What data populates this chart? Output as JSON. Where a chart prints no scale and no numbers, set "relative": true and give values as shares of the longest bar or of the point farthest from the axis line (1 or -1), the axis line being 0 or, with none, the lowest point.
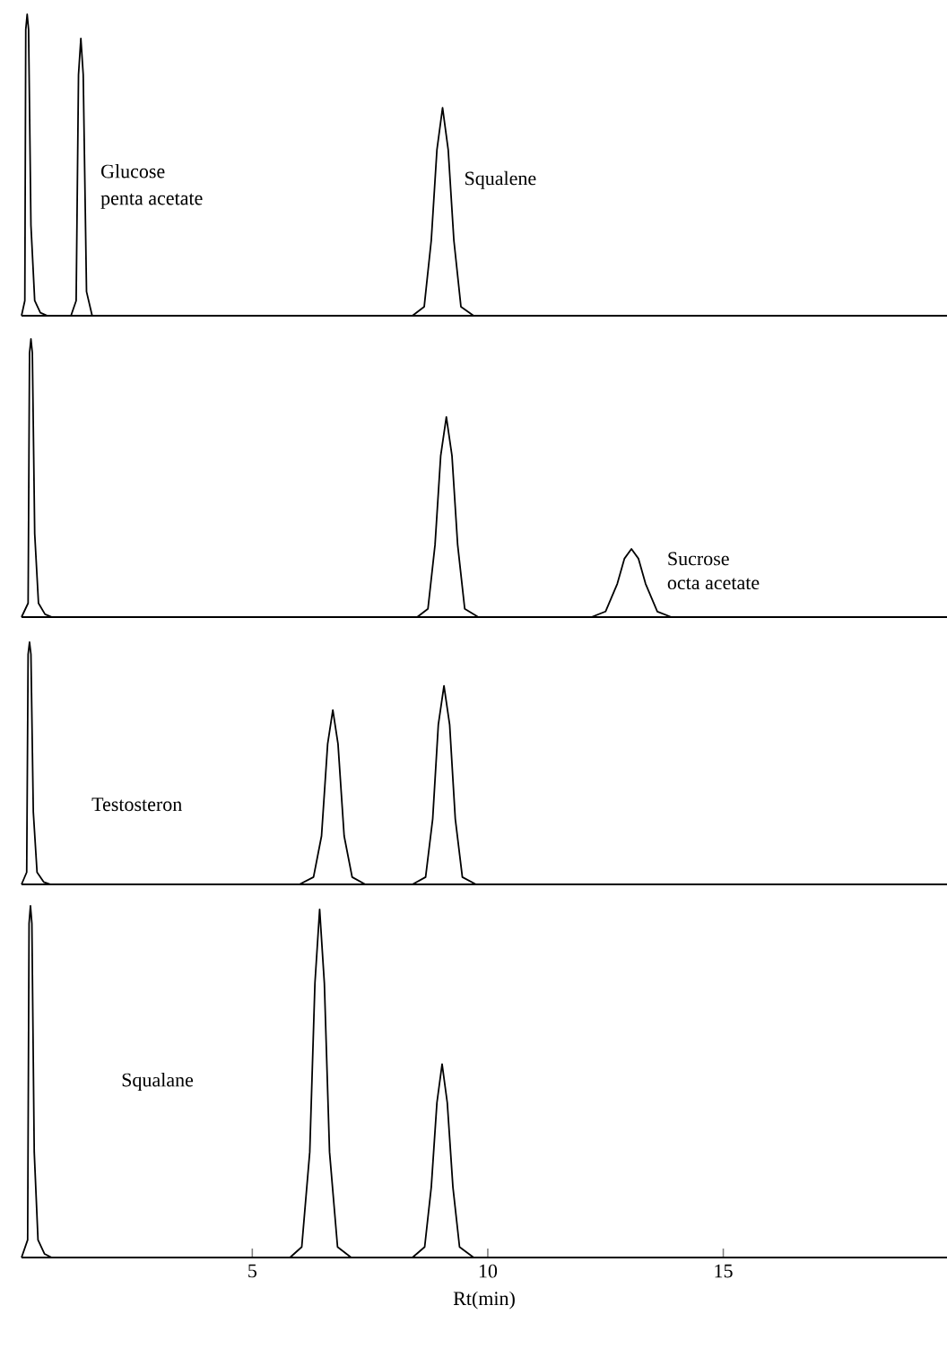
{
  "chart_data": [
    {
      "type": "line",
      "relative": true,
      "xlim": [
        0.1,
        19.75
      ],
      "tick_labels": false,
      "color": "#000000",
      "x": [
        0.1,
        0.17,
        0.19,
        0.22,
        0.25,
        0.3,
        0.38,
        0.5,
        0.65,
        1.15,
        1.26,
        1.31,
        1.36,
        1.41,
        1.48,
        1.6,
        8.4,
        8.65,
        8.8,
        8.92,
        9.04,
        9.16,
        9.28,
        9.43,
        9.7,
        19.75
      ],
      "values": [
        0,
        0.05,
        0.95,
        1,
        0.95,
        0.3,
        0.05,
        0.01,
        0,
        0,
        0.05,
        0.8,
        0.92,
        0.8,
        0.08,
        0,
        0,
        0.03,
        0.25,
        0.55,
        0.69,
        0.55,
        0.25,
        0.03,
        0,
        0
      ],
      "annotations": [
        "Glucose",
        "penta acetate",
        "Squalene"
      ]
    },
    {
      "type": "line",
      "relative": true,
      "xlim": [
        0.1,
        19.75
      ],
      "tick_labels": false,
      "color": "#000000",
      "x": [
        0.1,
        0.24,
        0.27,
        0.3,
        0.33,
        0.38,
        0.46,
        0.6,
        0.75,
        8.5,
        8.73,
        8.88,
        9.0,
        9.12,
        9.24,
        9.36,
        9.51,
        9.8,
        12.2,
        12.5,
        12.75,
        12.9,
        13.05,
        13.2,
        13.35,
        13.6,
        13.9,
        19.75
      ],
      "values": [
        0,
        0.05,
        0.95,
        1,
        0.95,
        0.3,
        0.05,
        0.01,
        0,
        0,
        0.03,
        0.26,
        0.58,
        0.72,
        0.58,
        0.26,
        0.03,
        0,
        0,
        0.02,
        0.12,
        0.21,
        0.245,
        0.21,
        0.12,
        0.02,
        0,
        0
      ],
      "annotations": [
        "Sucrose",
        "octa acetate"
      ]
    },
    {
      "type": "line",
      "relative": true,
      "xlim": [
        0.1,
        19.75
      ],
      "tick_labels": false,
      "color": "#000000",
      "x": [
        0.1,
        0.21,
        0.24,
        0.27,
        0.3,
        0.35,
        0.43,
        0.57,
        0.72,
        6.0,
        6.3,
        6.47,
        6.6,
        6.71,
        6.82,
        6.95,
        7.12,
        7.4,
        8.4,
        8.68,
        8.83,
        8.95,
        9.07,
        9.19,
        9.31,
        9.46,
        9.75,
        19.75
      ],
      "values": [
        0,
        0.05,
        0.95,
        1,
        0.95,
        0.3,
        0.05,
        0.01,
        0,
        0,
        0.03,
        0.2,
        0.58,
        0.72,
        0.58,
        0.2,
        0.03,
        0,
        0,
        0.03,
        0.27,
        0.66,
        0.82,
        0.66,
        0.27,
        0.03,
        0,
        0
      ],
      "annotations": [
        "Testosteron"
      ]
    },
    {
      "type": "line",
      "relative": true,
      "xlim": [
        0.1,
        19.75
      ],
      "xticks": [
        5,
        10,
        15
      ],
      "tick_labels": "x",
      "xlabel": "Rt(min)",
      "color": "#000000",
      "x": [
        0.1,
        0.23,
        0.26,
        0.29,
        0.32,
        0.37,
        0.45,
        0.59,
        0.74,
        5.8,
        6.05,
        6.22,
        6.33,
        6.43,
        6.53,
        6.64,
        6.81,
        7.1,
        8.4,
        8.66,
        8.8,
        8.92,
        9.03,
        9.14,
        9.26,
        9.4,
        9.7,
        19.75
      ],
      "values": [
        0,
        0.05,
        0.95,
        1,
        0.95,
        0.3,
        0.05,
        0.01,
        0,
        0,
        0.03,
        0.3,
        0.78,
        0.99,
        0.78,
        0.3,
        0.03,
        0,
        0,
        0.03,
        0.2,
        0.44,
        0.55,
        0.44,
        0.2,
        0.03,
        0,
        0
      ],
      "annotations": [
        "Squalane"
      ]
    }
  ]
}
